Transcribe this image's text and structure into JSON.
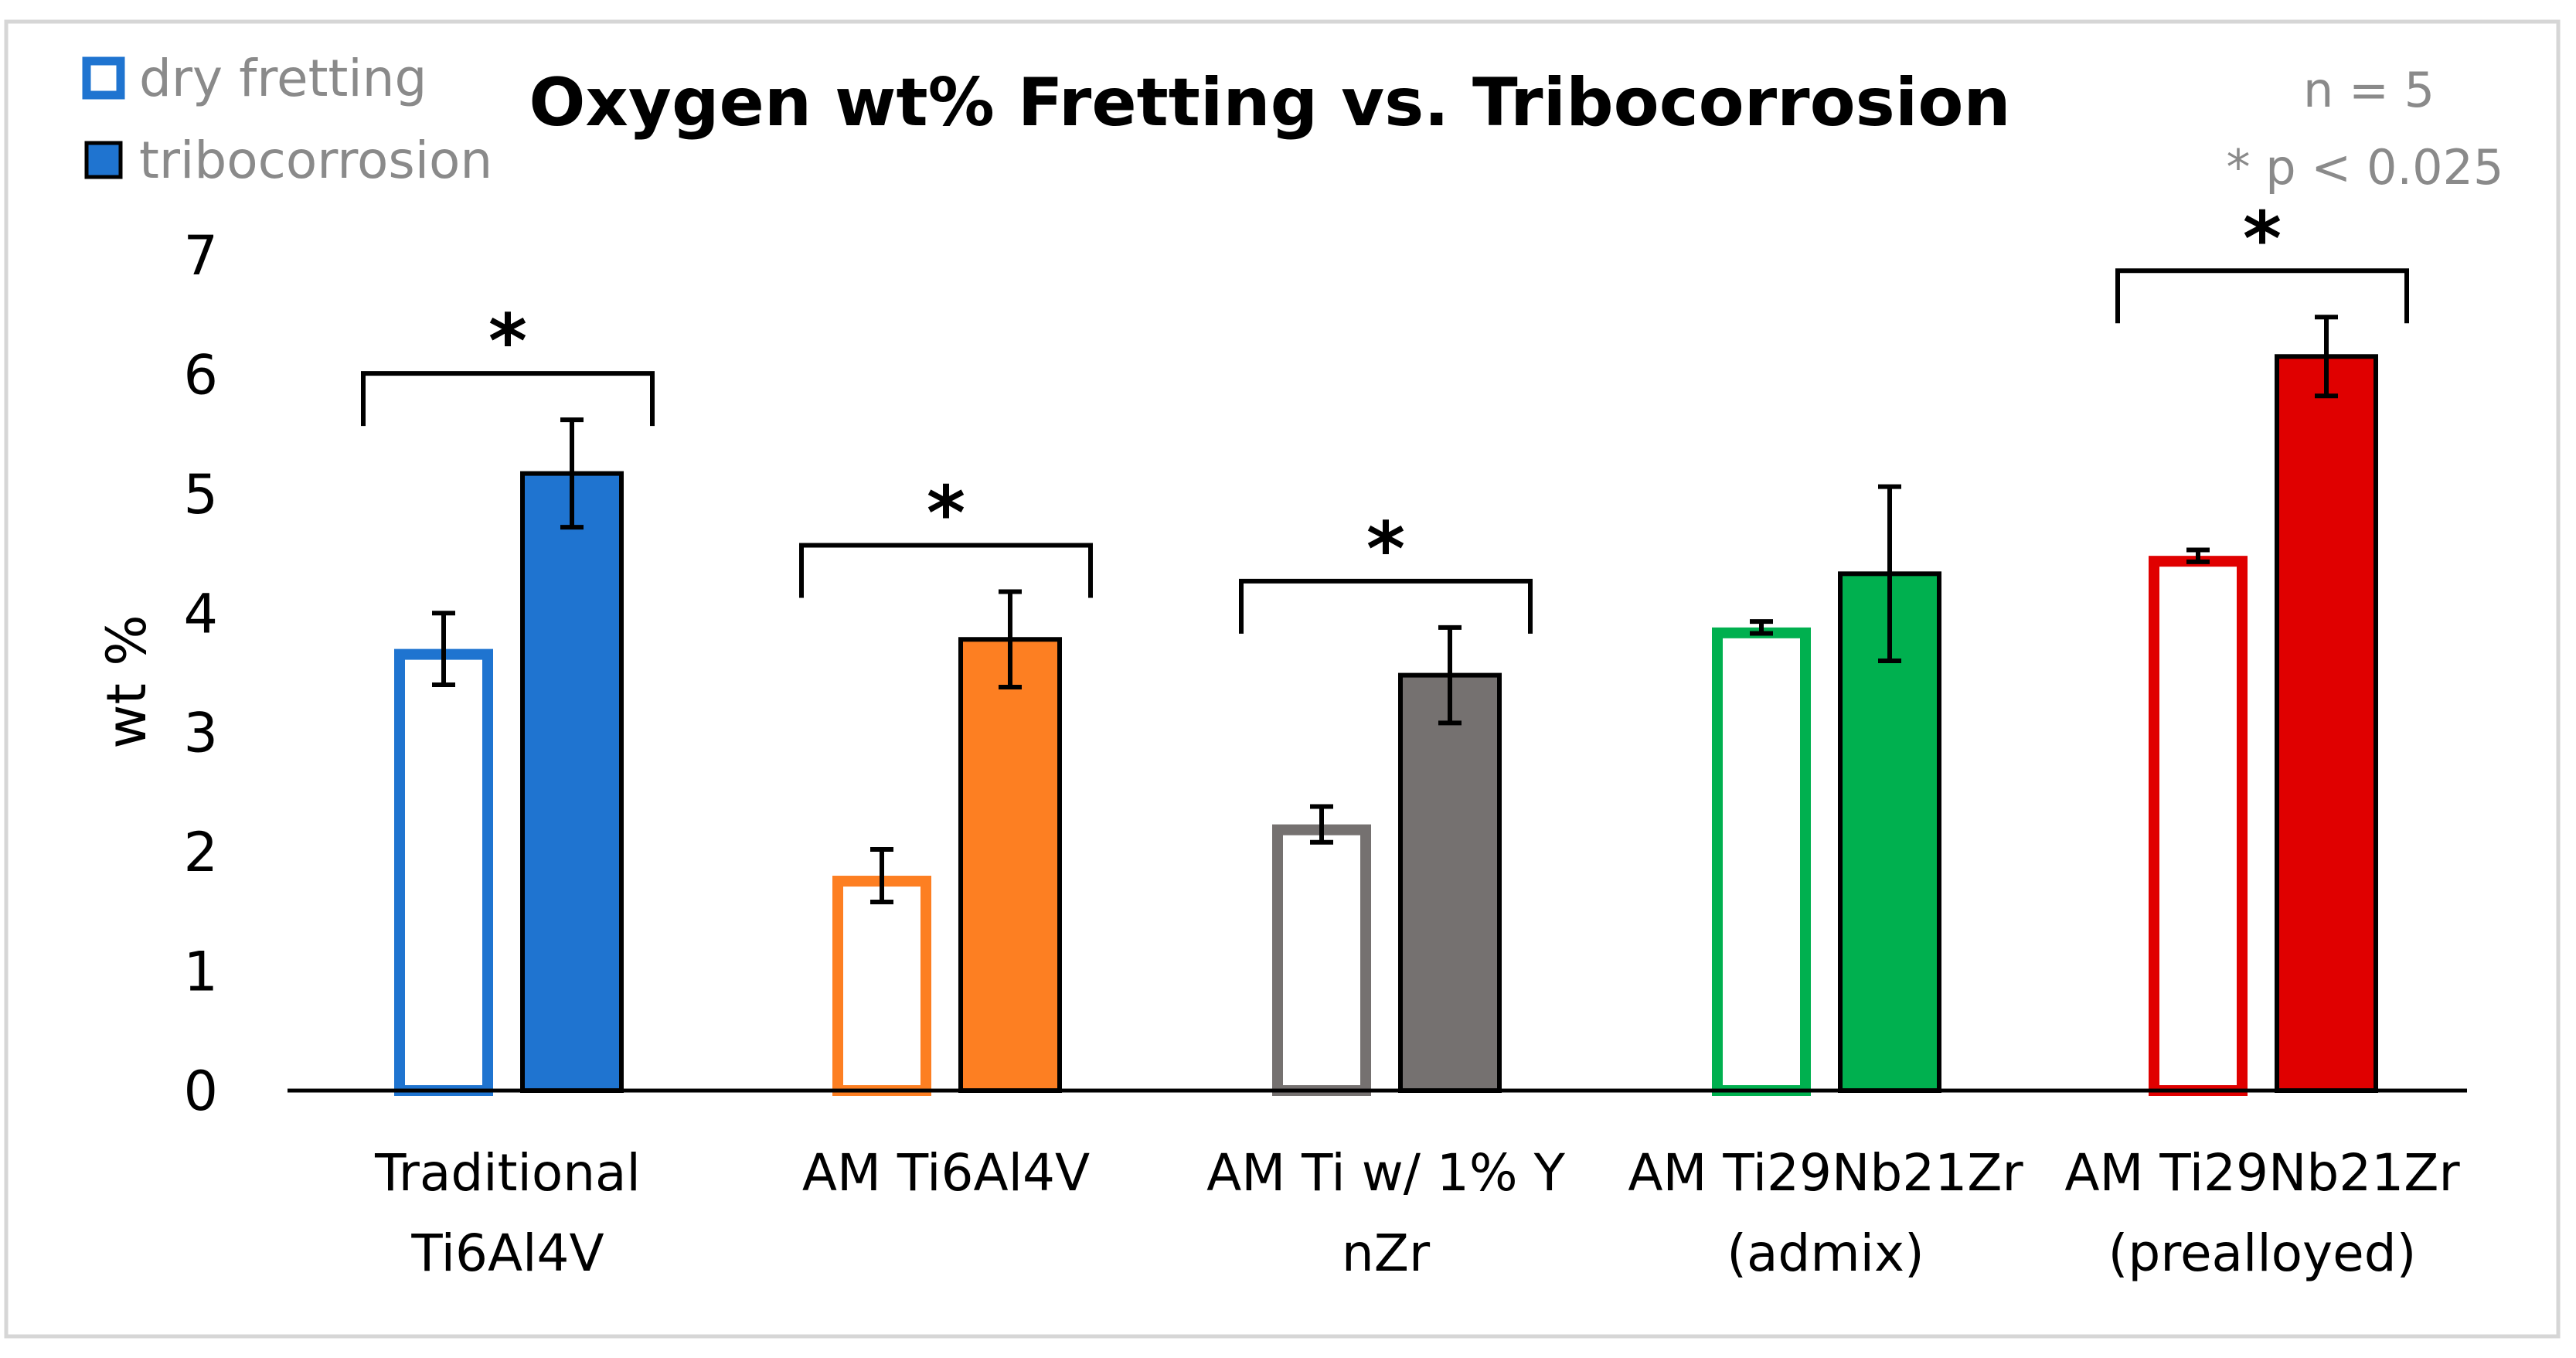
{
  "chart_data": {
    "type": "bar",
    "title": "Oxygen wt% Fretting vs. Tribocorrosion",
    "xlabel": "",
    "ylabel": "wt %",
    "ylim": [
      0,
      7
    ],
    "yticks": [
      "0",
      "1",
      "2",
      "3",
      "4",
      "5",
      "6",
      "7"
    ],
    "grid": false,
    "legend_position": "top-left",
    "annotations": [
      "n = 5",
      "* p < 0.025"
    ],
    "categories": [
      [
        "Traditional",
        "Ti6Al4V"
      ],
      [
        "AM Ti6Al4V"
      ],
      [
        "AM Ti w/ 1% Y",
        "nZr"
      ],
      [
        "AM Ti29Nb21Zr",
        "(admix)"
      ],
      [
        "AM Ti29Nb21Zr",
        "(prealloyed)"
      ]
    ],
    "colors": [
      "#1f74d0",
      "#fd7f22",
      "#757170",
      "#00b04f",
      "#e00000"
    ],
    "series": [
      {
        "name": "dry fretting",
        "style": "outline",
        "values": [
          3.7,
          1.8,
          2.23,
          3.88,
          4.48
        ],
        "errors": [
          0.3,
          0.22,
          0.15,
          0.05,
          0.05
        ]
      },
      {
        "name": "tribocorrosion",
        "style": "filled",
        "values": [
          5.17,
          3.78,
          3.48,
          4.33,
          6.15
        ],
        "errors": [
          0.45,
          0.4,
          0.4,
          0.73,
          0.33
        ]
      }
    ],
    "significance": [
      {
        "category": 0,
        "label": "*"
      },
      {
        "category": 1,
        "label": "*"
      },
      {
        "category": 2,
        "label": "*"
      },
      {
        "category": 4,
        "label": "*"
      }
    ]
  }
}
